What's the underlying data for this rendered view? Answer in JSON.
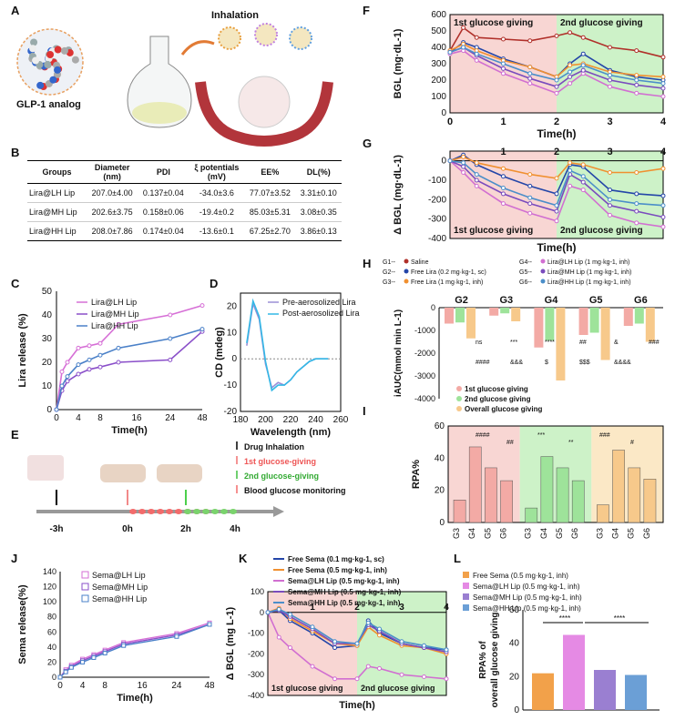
{
  "panels": [
    "A",
    "B",
    "C",
    "D",
    "E",
    "F",
    "G",
    "H",
    "I",
    "J",
    "K",
    "L"
  ],
  "panel_a": {
    "inhalation": "Inhalation",
    "glp1": "GLP-1 analog"
  },
  "table_b": {
    "headers": [
      "Groups",
      "Diameter\n(nm)",
      "PDI",
      "ξ potentials\n(mV)",
      "EE%",
      "DL(%)"
    ],
    "rows": [
      [
        "Lira@LH Lip",
        "207.0±4.00",
        "0.137±0.04",
        "-34.0±3.6",
        "77.07±3.52",
        "3.31±0.10"
      ],
      [
        "Lira@MH Lip",
        "202.6±3.75",
        "0.158±0.06",
        "-19.4±0.2",
        "85.03±5.31",
        "3.08±0.35"
      ],
      [
        "Lira@HH Lip",
        "208.0±7.86",
        "0.174±0.04",
        "-13.6±0.1",
        "67.25±2.70",
        "3.86±0.13"
      ]
    ]
  },
  "panel_e": {
    "legend": [
      "Drug Inhalation",
      "1st glucose-giving",
      "2nd glucose-giving",
      "Blood glucose monitoring"
    ],
    "times": [
      "-3h",
      "0h",
      "2h",
      "4h"
    ]
  },
  "chart_data": [
    {
      "id": "C",
      "type": "line",
      "xlabel": "Time(h)",
      "ylabel": "Lira release (%)",
      "xticks": [
        "0",
        "4",
        "8",
        "16",
        "24",
        "48"
      ],
      "yticks": [
        "0",
        "10",
        "20",
        "30",
        "40",
        "50"
      ],
      "ylim": [
        0,
        50
      ],
      "x": [
        0,
        1,
        2,
        4,
        6,
        8,
        12,
        24,
        48
      ],
      "series": [
        {
          "name": "Lira@LH Lip",
          "color": "#d66fd6",
          "values": [
            0,
            16,
            20,
            26,
            27,
            28,
            36,
            40,
            44
          ]
        },
        {
          "name": "Lira@MH Lip",
          "color": "#8a4fc9",
          "values": [
            0,
            8,
            12,
            15,
            17,
            18,
            20,
            21,
            33
          ]
        },
        {
          "name": "Lira@HH Lip",
          "color": "#4a80c8",
          "values": [
            0,
            10,
            14,
            19,
            21,
            23,
            26,
            30,
            34
          ]
        }
      ]
    },
    {
      "id": "D",
      "type": "line",
      "xlabel": "Wavelength (nm)",
      "ylabel": "CD (mdeg)",
      "xticks": [
        "180",
        "200",
        "220",
        "240",
        "260"
      ],
      "yticks": [
        "-20",
        "-10",
        "0",
        "10",
        "20"
      ],
      "xlim": [
        180,
        260
      ],
      "ylim": [
        -20,
        25
      ],
      "x": [
        185,
        190,
        195,
        200,
        205,
        210,
        215,
        220,
        225,
        230,
        235,
        240,
        245,
        250
      ],
      "series": [
        {
          "name": "Pre-aerosolized Lira",
          "color": "#9b8fd6",
          "values": [
            5,
            21,
            15,
            -2,
            -11,
            -9,
            -10,
            -8,
            -5,
            -3,
            -1,
            0,
            0,
            0
          ]
        },
        {
          "name": "Post-aerosolized Lira",
          "color": "#33b8e6",
          "values": [
            6,
            22,
            16,
            -1,
            -12,
            -10,
            -10,
            -8,
            -5,
            -3,
            -1,
            0,
            0,
            0
          ]
        }
      ]
    },
    {
      "id": "F",
      "type": "line",
      "title_regions": [
        "1st glucose giving",
        "2nd glucose giving"
      ],
      "xlabel": "Time(h)",
      "ylabel": "BGL (mg·dL-1)",
      "xticks": [
        "0",
        "1",
        "2",
        "3",
        "4"
      ],
      "yticks": [
        "0",
        "100",
        "200",
        "300",
        "400",
        "500",
        "600"
      ],
      "xlim": [
        0,
        4
      ],
      "ylim": [
        0,
        600
      ],
      "x": [
        0,
        0.25,
        0.5,
        1,
        1.5,
        2,
        2.25,
        2.5,
        3,
        3.5,
        4
      ],
      "series": [
        {
          "name": "Saline",
          "color": "#b0302a",
          "values": [
            380,
            520,
            460,
            450,
            440,
            470,
            490,
            460,
            400,
            380,
            340
          ]
        },
        {
          "name": "Free Lira (0.2 mg·kg-1, sc)",
          "color": "#2446a8",
          "values": [
            370,
            430,
            400,
            330,
            280,
            220,
            300,
            360,
            260,
            220,
            200
          ]
        },
        {
          "name": "Free Lira (1 mg·kg-1, inh)",
          "color": "#f09030",
          "values": [
            380,
            420,
            380,
            320,
            280,
            220,
            290,
            300,
            250,
            230,
            220
          ]
        },
        {
          "name": "Lira@LH Lip",
          "color": "#d16fd1",
          "values": [
            360,
            380,
            320,
            240,
            180,
            120,
            180,
            240,
            160,
            120,
            100
          ]
        },
        {
          "name": "Lira@MH Lip",
          "color": "#7a4bbd",
          "values": [
            370,
            400,
            350,
            270,
            210,
            160,
            220,
            260,
            200,
            170,
            150
          ]
        },
        {
          "name": "Lira@HH Lip",
          "color": "#4b8ec9",
          "values": [
            370,
            400,
            360,
            300,
            240,
            200,
            250,
            290,
            230,
            200,
            180
          ]
        }
      ]
    },
    {
      "id": "G",
      "type": "line",
      "title_regions": [
        "1st glucose giving",
        "2nd glucose giving"
      ],
      "xlabel": "Time(h)",
      "ylabel": "Δ BGL (mg·dL-1)",
      "xticks": [
        "1",
        "2",
        "3",
        "4"
      ],
      "yticks": [
        "0",
        "-100",
        "-200",
        "-300",
        "-400"
      ],
      "xlim": [
        0,
        4
      ],
      "ylim": [
        -400,
        50
      ],
      "x": [
        0,
        0.25,
        0.5,
        1,
        1.5,
        2,
        2.25,
        2.5,
        3,
        3.5,
        4
      ],
      "series": [
        {
          "name": "Free Lira (0.2 mg·kg-1, sc)",
          "color": "#2446a8",
          "values": [
            0,
            30,
            -20,
            -80,
            -130,
            -170,
            -20,
            -30,
            -150,
            -170,
            -180
          ]
        },
        {
          "name": "Free Lira (1 mg·kg-1, inh)",
          "color": "#f09030",
          "values": [
            0,
            20,
            -10,
            -40,
            -70,
            -90,
            -10,
            -20,
            -60,
            -60,
            -40
          ]
        },
        {
          "name": "Lira@LH Lip",
          "color": "#d16fd1",
          "values": [
            0,
            -60,
            -130,
            -220,
            -270,
            -310,
            -130,
            -150,
            -280,
            -320,
            -340
          ]
        },
        {
          "name": "Lira@MH Lip",
          "color": "#7a4bbd",
          "values": [
            0,
            -30,
            -100,
            -170,
            -220,
            -260,
            -70,
            -110,
            -230,
            -260,
            -290
          ]
        },
        {
          "name": "Lira@HH Lip",
          "color": "#4b8ec9",
          "values": [
            0,
            -10,
            -70,
            -140,
            -190,
            -230,
            -50,
            -80,
            -200,
            -220,
            -230
          ]
        }
      ]
    },
    {
      "id": "H",
      "type": "bar",
      "ylabel": "iAUC(mmol min L-1)",
      "groups": [
        "G2",
        "G3",
        "G4",
        "G5",
        "G6"
      ],
      "yticks": [
        "0",
        "-1000",
        "-2000",
        "-3000",
        "-4000"
      ],
      "ylim": [
        -4000,
        0
      ],
      "legend": [
        "G1--- Saline",
        "G2--- Free Lira (0.2 mg·kg-1, sc)",
        "G3--- Free Lira (1 mg·kg-1, inh)",
        "G4--- Lira@LH Lip (1 mg·kg-1, inh)",
        "G5--- Lira@MH Lip (1 mg·kg-1, inh)",
        "G6--- Lira@HH Lip (1 mg·kg-1, inh)"
      ],
      "series": [
        {
          "name": "1st glucose giving",
          "color": "#f3aaa5",
          "values": [
            -700,
            -350,
            -1750,
            -1200,
            -800
          ]
        },
        {
          "name": "2nd glucose giving",
          "color": "#9ee39a",
          "values": [
            -650,
            -250,
            -1450,
            -1100,
            -700
          ]
        },
        {
          "name": "Overall glucose giving",
          "color": "#f7c98b",
          "values": [
            -1350,
            -600,
            -3200,
            -2300,
            -1500
          ]
        }
      ],
      "annotations": [
        "ns",
        "***",
        "****",
        "##",
        "&",
        "###",
        "####",
        "&&&",
        "$",
        "$$$",
        "&&&&"
      ]
    },
    {
      "id": "I",
      "type": "bar",
      "ylabel": "RPA%",
      "regions": [
        "1st",
        "2nd",
        "overall"
      ],
      "categories": [
        "G3",
        "G4",
        "G5",
        "G6"
      ],
      "yticks": [
        "0",
        "20",
        "40",
        "60"
      ],
      "ylim": [
        0,
        60
      ],
      "series": [
        {
          "name": "1st glucose giving",
          "color": "#f3aaa5",
          "values": [
            14,
            47,
            34,
            26
          ]
        },
        {
          "name": "2nd glucose giving",
          "color": "#9ee39a",
          "values": [
            9,
            41,
            34,
            26
          ]
        },
        {
          "name": "Overall glucose giving",
          "color": "#f7c98b",
          "values": [
            11,
            45,
            34,
            27
          ]
        }
      ],
      "annotations": [
        "####",
        "##",
        "***",
        "**",
        "###",
        "#"
      ]
    },
    {
      "id": "J",
      "type": "line",
      "xlabel": "Time(h)",
      "ylabel": "Sema release(%)",
      "xticks": [
        "0",
        "4",
        "8",
        "16",
        "24",
        "48"
      ],
      "yticks": [
        "0",
        "20",
        "40",
        "60",
        "80",
        "100",
        "120",
        "140"
      ],
      "ylim": [
        0,
        140
      ],
      "x": [
        0,
        1,
        2,
        4,
        6,
        8,
        12,
        24,
        48
      ],
      "series": [
        {
          "name": "Sema@LH Lip",
          "color": "#d66fd6",
          "values": [
            0,
            10,
            16,
            24,
            30,
            36,
            46,
            58,
            72
          ]
        },
        {
          "name": "Sema@MH Lip",
          "color": "#8a4fc9",
          "values": [
            0,
            8,
            14,
            22,
            28,
            34,
            44,
            56,
            70
          ]
        },
        {
          "name": "Sema@HH Lip",
          "color": "#4a80c8",
          "values": [
            0,
            7,
            13,
            20,
            26,
            32,
            42,
            54,
            70
          ]
        }
      ]
    },
    {
      "id": "K",
      "type": "line",
      "title_regions": [
        "1st glucose giving",
        "2nd glucose giving"
      ],
      "xlabel": "Time(h)",
      "ylabel": "Δ BGL (mg L-1)",
      "xticks": [
        "1",
        "2",
        "3",
        "4"
      ],
      "yticks": [
        "100",
        "0",
        "-100",
        "-200",
        "-300",
        "-400"
      ],
      "xlim": [
        0,
        4
      ],
      "ylim": [
        -400,
        100
      ],
      "x": [
        0,
        0.25,
        0.5,
        1,
        1.5,
        2,
        2.25,
        2.5,
        3,
        3.5,
        4
      ],
      "series": [
        {
          "name": "Free Sema (0.1 mg·kg-1, sc)",
          "color": "#2446a8",
          "values": [
            0,
            10,
            -40,
            -100,
            -170,
            -160,
            -40,
            -100,
            -150,
            -170,
            -180
          ]
        },
        {
          "name": "Free Sema (0.5 mg·kg-1, inh)",
          "color": "#f09030",
          "values": [
            0,
            20,
            -30,
            -90,
            -150,
            -160,
            -70,
            -110,
            -160,
            -170,
            -200
          ]
        },
        {
          "name": "Sema@LH Lip (0.5 mg·kg-1, inh)",
          "color": "#d16fd1",
          "values": [
            0,
            -120,
            -170,
            -260,
            -320,
            -320,
            -260,
            -270,
            -300,
            -310,
            -320
          ]
        },
        {
          "name": "Sema@MH Lip (0.5 mg·kg-1, inh)",
          "color": "#7a4bbd",
          "values": [
            0,
            10,
            -20,
            -80,
            -150,
            -150,
            -60,
            -90,
            -150,
            -170,
            -190
          ]
        },
        {
          "name": "Sema@HH Lip (0.5 mg·kg-1, inh)",
          "color": "#4b8ec9",
          "values": [
            0,
            15,
            -10,
            -70,
            -140,
            -150,
            -50,
            -80,
            -140,
            -160,
            -180
          ]
        }
      ]
    },
    {
      "id": "L",
      "type": "bar",
      "ylabel": "RPA% of overall glucose giving",
      "yticks": [
        "0",
        "20",
        "40",
        "60"
      ],
      "ylim": [
        0,
        60
      ],
      "categories": [
        "Free Sema (0.5 mg·kg-1, inh)",
        "Sema@LH Lip (0.5 mg·kg-1, inh)",
        "Sema@MH Lip (0.5 mg·kg-1, inh)",
        "Sema@HH Lip (0.5 mg·kg-1, inh)"
      ],
      "colors": [
        "#f2a14a",
        "#e58ae4",
        "#9a7fd1",
        "#6b9fd6"
      ],
      "values": [
        22,
        45,
        24,
        21
      ],
      "annotations": [
        "****",
        "****"
      ]
    }
  ]
}
